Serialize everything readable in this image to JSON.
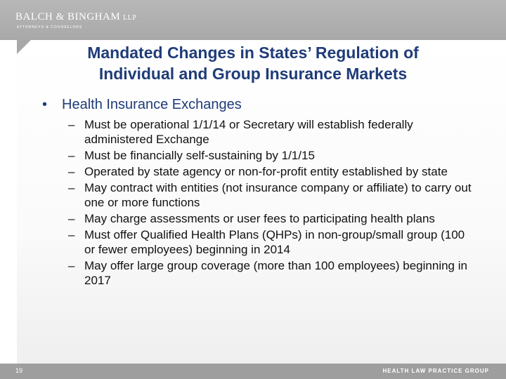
{
  "header": {
    "logo": "BALCH & BINGHAM",
    "logo_suffix": "LLP",
    "tagline": "ATTORNEYS & COUNSELORS"
  },
  "slide": {
    "title_line1": "Mandated Changes in States’ Regulation of",
    "title_line2": "Individual and Group Insurance Markets",
    "bullet_symbol": "•",
    "bullet": "Health Insurance Exchanges",
    "dash_symbol": "–",
    "sub_items": [
      "Must be operational 1/1/14 or Secretary will establish federally administered Exchange",
      "Must be financially self-sustaining by 1/1/15",
      "Operated by state agency or non-for-profit entity established by state",
      "May contract with entities (not insurance company or affiliate) to carry out one or more functions",
      "May charge assessments or user fees to participating health plans",
      "Must offer Qualified Health Plans (QHPs) in non-group/small group (100 or fewer employees) beginning in 2014",
      "May offer large group coverage (more than 100 employees) beginning in 2017"
    ]
  },
  "footer": {
    "page_number": "19",
    "group_name": "HEALTH LAW PRACTICE GROUP"
  }
}
